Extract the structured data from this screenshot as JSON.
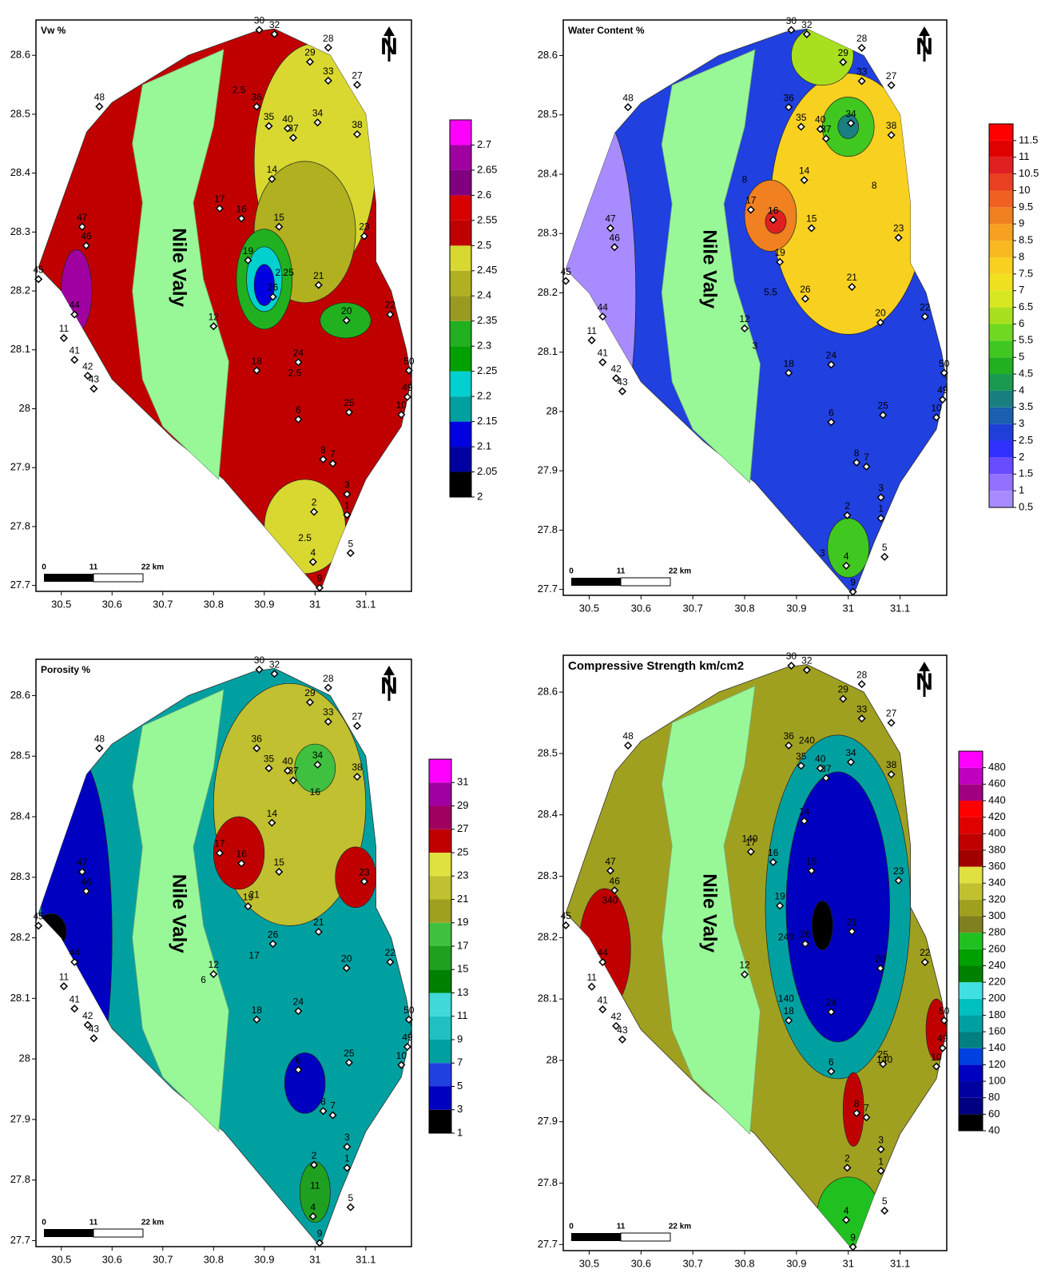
{
  "maps": [
    {
      "title": "Vw %",
      "xlim": [
        30.45,
        31.19
      ],
      "ylim": [
        27.69,
        28.66
      ],
      "xticks": [
        30.5,
        30.6,
        30.7,
        30.8,
        30.9,
        31,
        31.1
      ],
      "yticks": [
        27.7,
        27.8,
        27.9,
        28,
        28.1,
        28.2,
        28.3,
        28.4,
        28.5,
        28.6
      ],
      "colorbar": {
        "ticks": [
          2,
          2.05,
          2.1,
          2.15,
          2.2,
          2.25,
          2.3,
          2.35,
          2.4,
          2.45,
          2.5,
          2.55,
          2.6,
          2.65,
          2.7
        ],
        "colors": [
          "#000000",
          "#0000a0",
          "#0000e0",
          "#00a0a0",
          "#00d0d0",
          "#00a000",
          "#20b020",
          "#9a9a20",
          "#b0b020",
          "#d8d830",
          "#c00000",
          "#d80000",
          "#800080",
          "#a000a0",
          "#ff00ff"
        ]
      },
      "contour_labels": [
        {
          "text": "2.5",
          "lon": 30.85,
          "lat": 28.54
        },
        {
          "text": "2.25",
          "lon": 30.94,
          "lat": 28.23
        },
        {
          "text": "2.5",
          "lon": 30.96,
          "lat": 28.06
        },
        {
          "text": "2.5",
          "lon": 30.98,
          "lat": 27.78
        }
      ]
    },
    {
      "title": "Water Content %",
      "xlim": [
        30.45,
        31.19
      ],
      "ylim": [
        27.69,
        28.66
      ],
      "xticks": [
        30.5,
        30.6,
        30.7,
        30.8,
        30.9,
        31,
        31.1
      ],
      "yticks": [
        27.7,
        27.8,
        27.9,
        28,
        28.1,
        28.2,
        28.3,
        28.4,
        28.5,
        28.6
      ],
      "colorbar": {
        "ticks": [
          0.5,
          1,
          1.5,
          2,
          2.5,
          3,
          3.5,
          4,
          4.5,
          5,
          5.5,
          6,
          6.5,
          7,
          7.5,
          8,
          8.5,
          9,
          9.5,
          10,
          10.5,
          11,
          11.5
        ],
        "colors": [
          "#a88cff",
          "#9370ff",
          "#6a4cff",
          "#3030ff",
          "#1f3fd8",
          "#1a5fb0",
          "#1a7f80",
          "#1a9a50",
          "#20b020",
          "#40c820",
          "#70d820",
          "#a8e020",
          "#d8e820",
          "#f0e020",
          "#f8d020",
          "#f8b820",
          "#f8a020",
          "#f08020",
          "#f06020",
          "#e84020",
          "#e02020",
          "#e00000",
          "#ff0000"
        ]
      },
      "contour_labels": [
        {
          "text": "8",
          "lon": 30.8,
          "lat": 28.39
        },
        {
          "text": "5.5",
          "lon": 30.85,
          "lat": 28.2
        },
        {
          "text": "3",
          "lon": 30.82,
          "lat": 28.11
        },
        {
          "text": "8",
          "lon": 31.05,
          "lat": 28.38
        },
        {
          "text": "3",
          "lon": 30.95,
          "lat": 27.76
        }
      ]
    },
    {
      "title": "Porosity %",
      "xlim": [
        30.45,
        31.19
      ],
      "ylim": [
        27.69,
        28.66
      ],
      "xticks": [
        30.5,
        30.6,
        30.7,
        30.8,
        30.9,
        31,
        31.1
      ],
      "yticks": [
        27.7,
        27.8,
        27.9,
        28,
        28.1,
        28.2,
        28.3,
        28.4,
        28.5,
        28.6
      ],
      "colorbar": {
        "ticks": [
          1,
          3,
          5,
          7,
          9,
          11,
          13,
          15,
          17,
          19,
          21,
          23,
          25,
          27,
          29,
          31
        ],
        "colors": [
          "#000000",
          "#0000c0",
          "#2040e0",
          "#00a0a0",
          "#20c0c0",
          "#40d8d8",
          "#008000",
          "#20a020",
          "#40c040",
          "#a0a020",
          "#c0c030",
          "#e0e040",
          "#c00000",
          "#a00060",
          "#a000a0",
          "#ff00ff"
        ]
      },
      "contour_labels": [
        {
          "text": "16",
          "lon": 31,
          "lat": 28.44
        },
        {
          "text": "21",
          "lon": 30.88,
          "lat": 28.27
        },
        {
          "text": "17",
          "lon": 30.88,
          "lat": 28.17
        },
        {
          "text": "6",
          "lon": 30.78,
          "lat": 28.13
        },
        {
          "text": "11",
          "lon": 31.0,
          "lat": 27.79
        }
      ]
    },
    {
      "title": "Compressive Strength km/cm2",
      "xlim": [
        30.45,
        31.19
      ],
      "ylim": [
        27.69,
        28.66
      ],
      "xticks": [
        30.5,
        30.6,
        30.7,
        30.8,
        30.9,
        31,
        31.1
      ],
      "yticks": [
        27.7,
        27.8,
        27.9,
        28,
        28.1,
        28.2,
        28.3,
        28.4,
        28.5,
        28.6
      ],
      "colorbar": {
        "ticks": [
          40,
          60,
          80,
          100,
          120,
          140,
          160,
          180,
          200,
          220,
          240,
          260,
          280,
          300,
          320,
          340,
          360,
          380,
          400,
          420,
          440,
          460,
          480
        ],
        "colors": [
          "#000000",
          "#000080",
          "#0000a0",
          "#0000c0",
          "#0040e0",
          "#008080",
          "#00a0a0",
          "#00c0c0",
          "#40e0e0",
          "#008000",
          "#00a000",
          "#20c020",
          "#808020",
          "#a0a020",
          "#c0c030",
          "#e0e040",
          "#a00000",
          "#c00000",
          "#e00000",
          "#ff0000",
          "#a00080",
          "#c000c0",
          "#ff00ff"
        ]
      },
      "contour_labels": [
        {
          "text": "240",
          "lon": 30.92,
          "lat": 28.52
        },
        {
          "text": "140",
          "lon": 30.81,
          "lat": 28.36
        },
        {
          "text": "240",
          "lon": 30.88,
          "lat": 28.2
        },
        {
          "text": "140",
          "lon": 30.88,
          "lat": 28.1
        },
        {
          "text": "340",
          "lon": 30.54,
          "lat": 28.26
        },
        {
          "text": "140",
          "lon": 31.07,
          "lat": 28.0
        }
      ]
    }
  ],
  "stations": [
    {
      "label": "30",
      "lon": 30.89,
      "lat": 28.643
    },
    {
      "label": "32",
      "lon": 30.92,
      "lat": 28.636
    },
    {
      "label": "28",
      "lon": 31.026,
      "lat": 28.613
    },
    {
      "label": "29",
      "lon": 30.99,
      "lat": 28.589
    },
    {
      "label": "27",
      "lon": 31.083,
      "lat": 28.55
    },
    {
      "label": "33",
      "lon": 31.026,
      "lat": 28.557
    },
    {
      "label": "48",
      "lon": 30.575,
      "lat": 28.513
    },
    {
      "label": "36",
      "lon": 30.885,
      "lat": 28.513
    },
    {
      "label": "35",
      "lon": 30.909,
      "lat": 28.48
    },
    {
      "label": "34",
      "lon": 31.005,
      "lat": 28.486
    },
    {
      "label": "40",
      "lon": 30.946,
      "lat": 28.476
    },
    {
      "label": "37",
      "lon": 30.957,
      "lat": 28.46
    },
    {
      "label": "38",
      "lon": 31.083,
      "lat": 28.466
    },
    {
      "label": "14",
      "lon": 30.915,
      "lat": 28.39
    },
    {
      "label": "17",
      "lon": 30.812,
      "lat": 28.34
    },
    {
      "label": "16",
      "lon": 30.855,
      "lat": 28.323
    },
    {
      "label": "15",
      "lon": 30.929,
      "lat": 28.309
    },
    {
      "label": "47",
      "lon": 30.541,
      "lat": 28.309
    },
    {
      "label": "46",
      "lon": 30.549,
      "lat": 28.277
    },
    {
      "label": "23",
      "lon": 31.097,
      "lat": 28.293
    },
    {
      "label": "45",
      "lon": 30.455,
      "lat": 28.22
    },
    {
      "label": "19",
      "lon": 30.868,
      "lat": 28.252
    },
    {
      "label": "26",
      "lon": 30.917,
      "lat": 28.19
    },
    {
      "label": "21",
      "lon": 31.007,
      "lat": 28.21
    },
    {
      "label": "44",
      "lon": 30.526,
      "lat": 28.16
    },
    {
      "label": "20",
      "lon": 31.062,
      "lat": 28.15
    },
    {
      "label": "22",
      "lon": 31.148,
      "lat": 28.16
    },
    {
      "label": "12",
      "lon": 30.8,
      "lat": 28.14
    },
    {
      "label": "11",
      "lon": 30.505,
      "lat": 28.12
    },
    {
      "label": "41",
      "lon": 30.526,
      "lat": 28.083
    },
    {
      "label": "42",
      "lon": 30.552,
      "lat": 28.056
    },
    {
      "label": "43",
      "lon": 30.564,
      "lat": 28.034
    },
    {
      "label": "18",
      "lon": 30.885,
      "lat": 28.065
    },
    {
      "label": "24",
      "lon": 30.967,
      "lat": 28.079
    },
    {
      "label": "50",
      "lon": 31.185,
      "lat": 28.065
    },
    {
      "label": "49",
      "lon": 31.182,
      "lat": 28.02
    },
    {
      "label": "10",
      "lon": 31.17,
      "lat": 27.99
    },
    {
      "label": "25",
      "lon": 31.067,
      "lat": 27.994
    },
    {
      "label": "6",
      "lon": 30.967,
      "lat": 27.982
    },
    {
      "label": "8",
      "lon": 31.016,
      "lat": 27.914
    },
    {
      "label": "7",
      "lon": 31.035,
      "lat": 27.907
    },
    {
      "label": "3",
      "lon": 31.063,
      "lat": 27.855
    },
    {
      "label": "1",
      "lon": 31.063,
      "lat": 27.82
    },
    {
      "label": "2",
      "lon": 30.998,
      "lat": 27.825
    },
    {
      "label": "5",
      "lon": 31.07,
      "lat": 27.755
    },
    {
      "label": "4",
      "lon": 30.996,
      "lat": 27.74
    },
    {
      "label": "9",
      "lon": 31.009,
      "lat": 27.696
    }
  ],
  "nile_label": "Nile Valy",
  "north": "N",
  "scale_labels": [
    "0",
    "11",
    "22 km"
  ]
}
